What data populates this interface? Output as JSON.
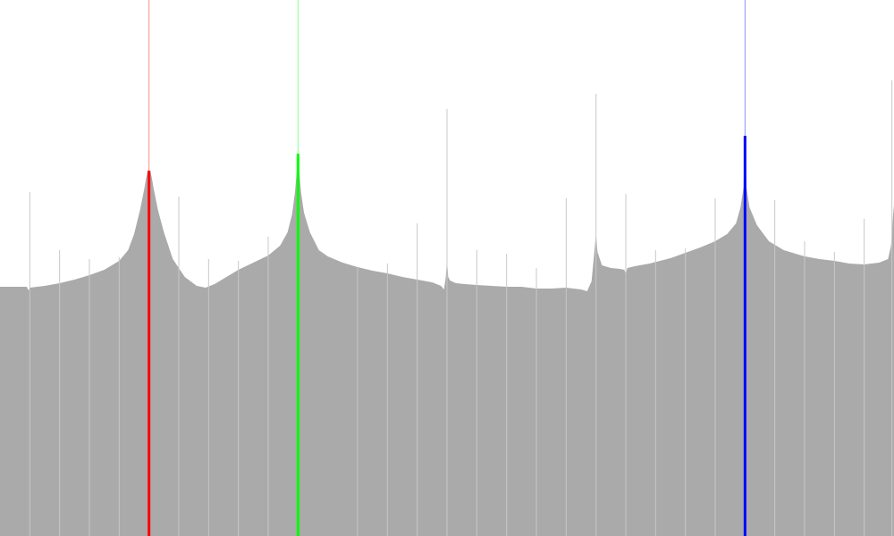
{
  "chart_data": {
    "type": "area",
    "title": "",
    "xlabel": "",
    "ylabel": "",
    "xlim": [
      0,
      30
    ],
    "ylim": [
      0,
      600
    ],
    "grid": false,
    "fill_color": "#aaaaaa",
    "background": "#ffffff",
    "series": [
      {
        "points": [
          [
            0,
            279
          ],
          [
            0.9,
            279
          ],
          [
            0.95,
            275
          ],
          [
            1,
            278
          ],
          [
            1.5,
            280
          ],
          [
            2,
            283
          ],
          [
            2.5,
            287
          ],
          [
            3,
            292
          ],
          [
            3.5,
            298
          ],
          [
            4,
            308
          ],
          [
            4.3,
            320
          ],
          [
            4.5,
            338
          ],
          [
            4.7,
            365
          ],
          [
            4.85,
            390
          ],
          [
            4.9,
            400
          ],
          [
            4.95,
            408
          ],
          [
            5,
            409
          ],
          [
            5.05,
            408
          ],
          [
            5.1,
            400
          ],
          [
            5.15,
            390
          ],
          [
            5.3,
            365
          ],
          [
            5.5,
            340
          ],
          [
            5.8,
            310
          ],
          [
            6.2,
            290
          ],
          [
            6.6,
            280
          ],
          [
            6.9,
            278
          ],
          [
            7.2,
            282
          ],
          [
            7.6,
            290
          ],
          [
            8,
            298
          ],
          [
            8.5,
            306
          ],
          [
            9,
            314
          ],
          [
            9.4,
            325
          ],
          [
            9.65,
            340
          ],
          [
            9.8,
            360
          ],
          [
            9.9,
            385
          ],
          [
            9.95,
            405
          ],
          [
            10,
            428
          ],
          [
            10.05,
            405
          ],
          [
            10.1,
            385
          ],
          [
            10.2,
            362
          ],
          [
            10.4,
            340
          ],
          [
            10.7,
            320
          ],
          [
            11,
            313
          ],
          [
            11.5,
            306
          ],
          [
            12,
            301
          ],
          [
            12.5,
            297
          ],
          [
            13,
            294
          ],
          [
            13.5,
            290
          ],
          [
            14,
            287
          ],
          [
            14.5,
            284
          ],
          [
            14.8,
            280
          ],
          [
            14.9,
            276
          ],
          [
            14.96,
            290
          ],
          [
            15,
            310
          ],
          [
            15.04,
            290
          ],
          [
            15.1,
            286
          ],
          [
            15.3,
            283
          ],
          [
            15.6,
            282
          ],
          [
            16,
            281
          ],
          [
            16.5,
            280
          ],
          [
            17,
            279
          ],
          [
            17.5,
            279
          ],
          [
            18,
            277
          ],
          [
            18.5,
            277
          ],
          [
            19,
            278
          ],
          [
            19.5,
            276
          ],
          [
            19.7,
            274
          ],
          [
            19.85,
            285
          ],
          [
            19.95,
            320
          ],
          [
            20,
            339
          ],
          [
            20.05,
            318
          ],
          [
            20.2,
            303
          ],
          [
            20.5,
            300
          ],
          [
            20.8,
            299
          ],
          [
            20.95,
            298
          ],
          [
            21,
            293
          ],
          [
            21.05,
            300
          ],
          [
            21.3,
            302
          ],
          [
            21.8,
            305
          ],
          [
            22.5,
            311
          ],
          [
            23,
            317
          ],
          [
            23.5,
            323
          ],
          [
            24,
            330
          ],
          [
            24.4,
            338
          ],
          [
            24.7,
            350
          ],
          [
            24.85,
            368
          ],
          [
            24.95,
            390
          ],
          [
            25,
            448
          ],
          [
            25.05,
            390
          ],
          [
            25.15,
            368
          ],
          [
            25.4,
            348
          ],
          [
            25.8,
            330
          ],
          [
            26.3,
            320
          ],
          [
            27,
            313
          ],
          [
            27.5,
            310
          ],
          [
            28,
            308
          ],
          [
            28.5,
            305
          ],
          [
            29,
            304
          ],
          [
            29.5,
            306
          ],
          [
            29.8,
            310
          ],
          [
            29.9,
            325
          ],
          [
            29.97,
            360
          ],
          [
            30,
            370
          ]
        ]
      }
    ],
    "markers": [
      {
        "x": 5,
        "color": "#ff0000"
      },
      {
        "x": 10,
        "color": "#00ff00"
      },
      {
        "x": 25,
        "color": "#0000ff"
      }
    ],
    "spikes": [
      {
        "x": 1,
        "top": 385
      },
      {
        "x": 2,
        "top": 320
      },
      {
        "x": 3,
        "top": 310
      },
      {
        "x": 4,
        "top": 312
      },
      {
        "x": 6,
        "top": 380
      },
      {
        "x": 7,
        "top": 310
      },
      {
        "x": 8,
        "top": 308
      },
      {
        "x": 9,
        "top": 335
      },
      {
        "x": 12,
        "top": 300
      },
      {
        "x": 13,
        "top": 305
      },
      {
        "x": 14,
        "top": 350
      },
      {
        "x": 15,
        "top": 478
      },
      {
        "x": 16,
        "top": 320
      },
      {
        "x": 17,
        "top": 316
      },
      {
        "x": 18,
        "top": 300
      },
      {
        "x": 19,
        "top": 378
      },
      {
        "x": 20,
        "top": 495
      },
      {
        "x": 21,
        "top": 383
      },
      {
        "x": 22,
        "top": 320
      },
      {
        "x": 23,
        "top": 322
      },
      {
        "x": 24,
        "top": 378
      },
      {
        "x": 26,
        "top": 376
      },
      {
        "x": 27,
        "top": 330
      },
      {
        "x": 28,
        "top": 318
      },
      {
        "x": 29,
        "top": 355
      },
      {
        "x": 29.93,
        "top": 510
      }
    ]
  }
}
